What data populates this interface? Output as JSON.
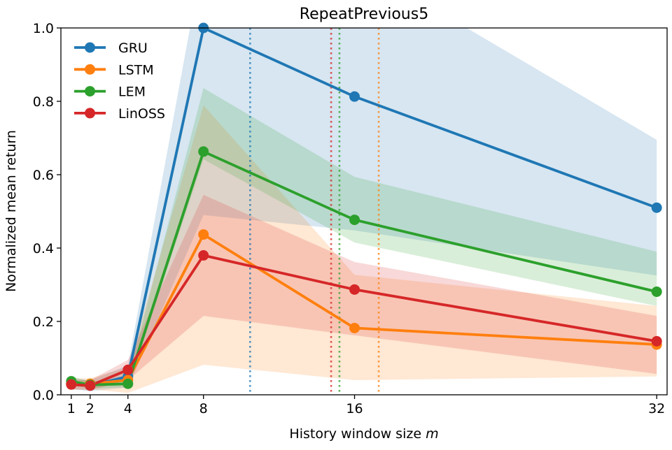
{
  "chart_data": {
    "type": "line",
    "title": "RepeatPrevious5",
    "xlabel": "History window size",
    "xlabel_var": "m",
    "ylabel": "Normalized mean return",
    "x": [
      1,
      2,
      4,
      8,
      16,
      32
    ],
    "xticks": [
      1,
      2,
      4,
      8,
      16,
      32
    ],
    "yticks": [
      "0.0",
      "0.2",
      "0.4",
      "0.6",
      "0.8",
      "1.0"
    ],
    "xlim": [
      0.45,
      32.55
    ],
    "ylim": [
      0,
      1
    ],
    "grid": false,
    "legend_position": "top-left",
    "series": [
      {
        "name": "GRU",
        "color": "#1f77b4",
        "values": [
          0.03,
          0.025,
          0.05,
          1.0,
          0.813,
          0.51
        ],
        "lower": [
          0.015,
          0.01,
          0.02,
          0.49,
          0.448,
          0.325
        ],
        "upper": [
          0.045,
          0.04,
          0.08,
          1.2,
          1.18,
          0.695
        ],
        "threshold_x": 10.47
      },
      {
        "name": "LSTM",
        "color": "#ff7f0e",
        "values": [
          0.03,
          0.03,
          0.04,
          0.437,
          0.182,
          0.137
        ],
        "lower": [
          0.015,
          0.015,
          0.005,
          0.082,
          0.04,
          0.05
        ],
        "upper": [
          0.045,
          0.045,
          0.075,
          0.789,
          0.327,
          0.242
        ],
        "threshold_x": 17.28
      },
      {
        "name": "LEM",
        "color": "#2ca02c",
        "values": [
          0.037,
          0.027,
          0.03,
          0.663,
          0.477,
          0.281
        ],
        "lower": [
          0.025,
          0.018,
          0.02,
          0.642,
          0.415,
          0.242
        ],
        "upper": [
          0.05,
          0.036,
          0.045,
          0.836,
          0.594,
          0.39
        ],
        "threshold_x": 15.2
      },
      {
        "name": "LinOSS",
        "color": "#d62728",
        "values": [
          0.028,
          0.025,
          0.068,
          0.38,
          0.287,
          0.146
        ],
        "lower": [
          0.015,
          0.012,
          0.04,
          0.215,
          0.162,
          0.057
        ],
        "upper": [
          0.04,
          0.04,
          0.095,
          0.545,
          0.362,
          0.215
        ],
        "threshold_x": 14.76
      }
    ]
  }
}
